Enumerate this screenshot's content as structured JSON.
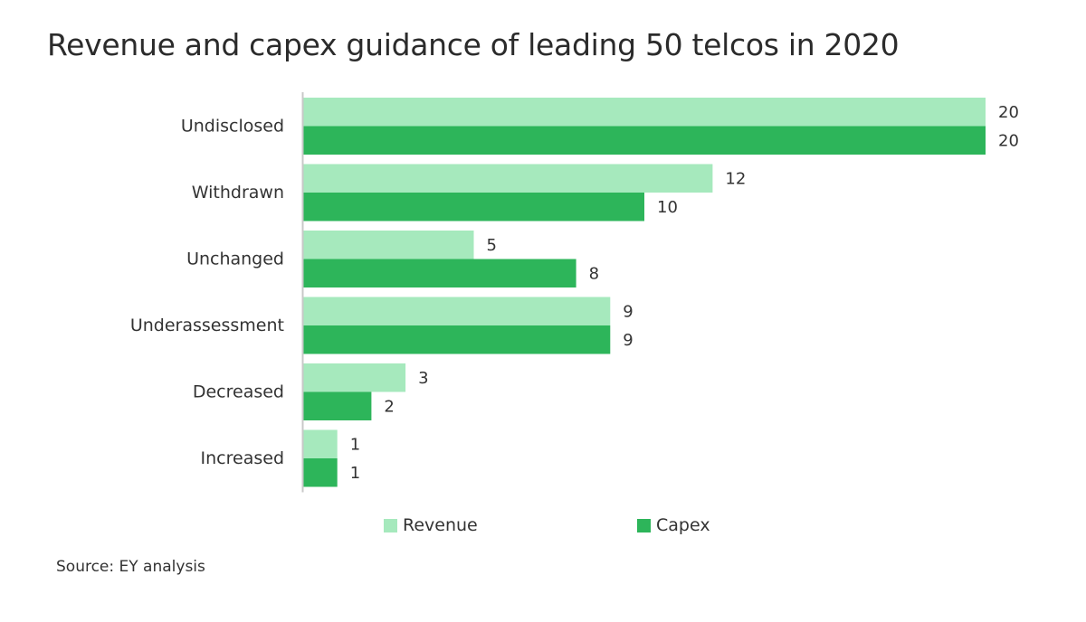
{
  "chart_data": {
    "type": "bar",
    "orientation": "horizontal",
    "title": "Revenue and capex guidance of leading 50 telcos in 2020",
    "categories": [
      "Undisclosed",
      "Withdrawn",
      "Unchanged",
      "Underassessment",
      "Decreased",
      "Increased"
    ],
    "series": [
      {
        "name": "Revenue",
        "values": [
          20,
          12,
          5,
          9,
          3,
          1
        ],
        "color": "#a6e9bd"
      },
      {
        "name": "Capex",
        "values": [
          20,
          10,
          8,
          9,
          2,
          1
        ],
        "color": "#2db55a"
      }
    ],
    "xlim": [
      0,
      20
    ],
    "grid": false,
    "legend_position": "bottom",
    "data_labels": true,
    "source": "Source: EY analysis"
  }
}
